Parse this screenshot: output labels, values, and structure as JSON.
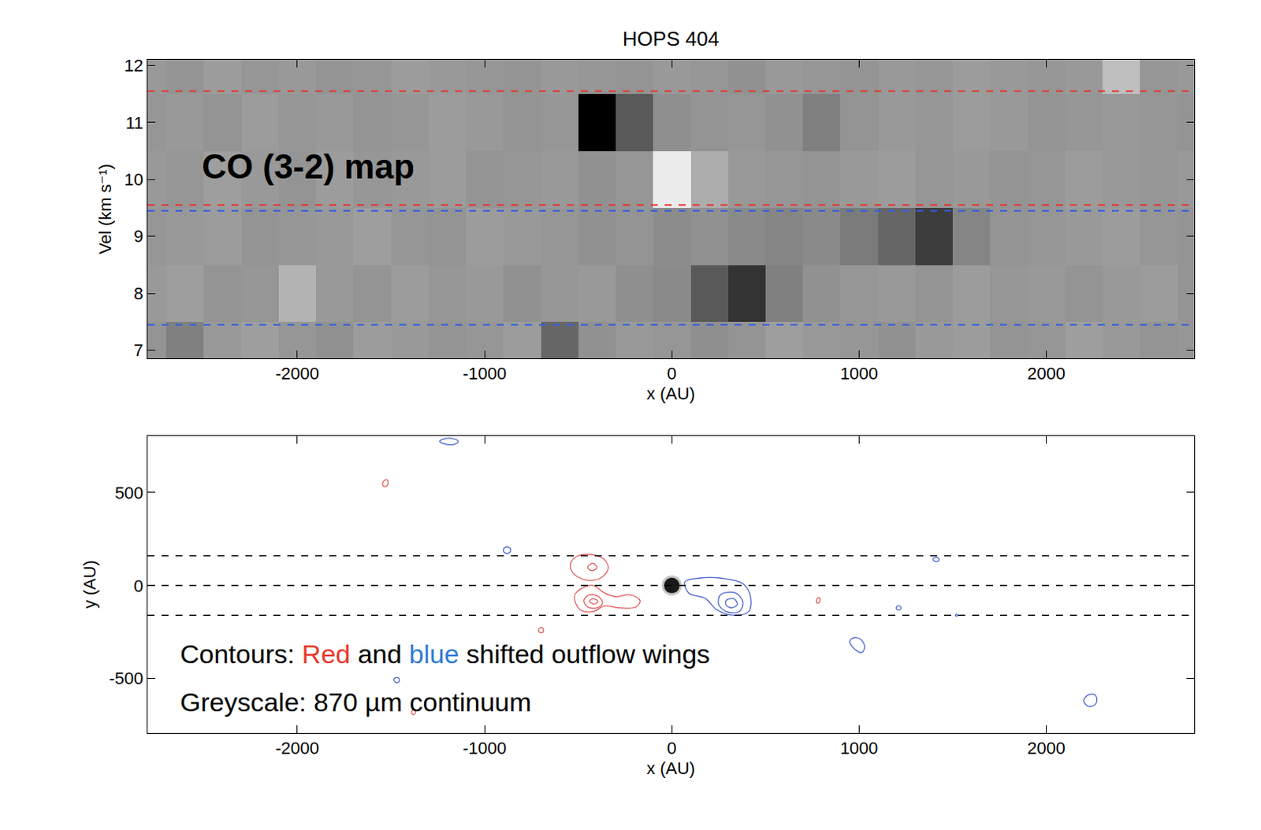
{
  "chart_data": [
    {
      "type": "heatmap",
      "title": "HOPS 404",
      "x_label": "x (AU)",
      "y_label": "Vel (km s⁻¹)",
      "annotation": "CO (3-2) map",
      "x": [
        -2800,
        -2600,
        -2400,
        -2200,
        -2000,
        -1800,
        -1600,
        -1400,
        -1200,
        -1000,
        -800,
        -600,
        -400,
        -200,
        0,
        200,
        400,
        600,
        800,
        1000,
        1200,
        1400,
        1600,
        1800,
        2000,
        2200,
        2400,
        2600,
        2800
      ],
      "y": [
        7,
        8,
        9,
        10,
        11,
        12
      ],
      "z": [
        [
          4.2,
          5.0,
          4.0,
          3.8,
          4.1,
          4.3,
          3.9,
          4.0,
          4.2,
          4.1,
          3.9,
          6.0,
          4.3,
          4.0,
          4.1,
          4.4,
          4.2,
          3.8,
          4.0,
          4.1,
          4.3,
          4.0,
          3.9,
          4.2,
          4.1,
          3.8,
          4.0,
          4.2,
          4.1
        ],
        [
          4.0,
          3.8,
          4.2,
          4.1,
          3.0,
          4.0,
          4.2,
          3.9,
          4.1,
          4.0,
          4.3,
          4.1,
          4.0,
          4.4,
          4.6,
          6.5,
          8.0,
          5.0,
          4.3,
          4.1,
          4.0,
          4.2,
          3.9,
          4.1,
          4.0,
          4.2,
          4.0,
          3.9,
          4.2
        ],
        [
          4.1,
          4.0,
          3.9,
          4.2,
          4.1,
          4.0,
          3.8,
          4.1,
          4.2,
          3.9,
          4.0,
          4.1,
          4.3,
          4.2,
          4.5,
          4.3,
          4.6,
          4.8,
          4.6,
          5.2,
          6.0,
          7.6,
          4.8,
          4.2,
          4.1,
          4.0,
          3.9,
          4.1,
          4.2
        ],
        [
          4.0,
          4.1,
          3.8,
          4.0,
          4.2,
          3.9,
          4.1,
          4.0,
          3.9,
          4.2,
          4.1,
          4.0,
          4.3,
          4.1,
          0.8,
          3.2,
          4.0,
          4.1,
          4.2,
          4.0,
          3.9,
          4.1,
          4.0,
          4.2,
          4.1,
          3.9,
          4.0,
          4.1,
          4.0
        ],
        [
          4.1,
          4.0,
          4.2,
          3.9,
          4.1,
          4.0,
          4.2,
          4.1,
          3.9,
          4.0,
          4.2,
          4.1,
          10.0,
          6.5,
          4.4,
          4.2,
          4.1,
          4.3,
          5.0,
          4.2,
          4.0,
          4.1,
          3.9,
          4.0,
          4.2,
          4.1,
          4.0,
          4.1,
          4.2
        ],
        [
          4.0,
          4.2,
          3.9,
          4.1,
          4.0,
          4.2,
          4.1,
          3.9,
          4.0,
          4.1,
          4.2,
          4.0,
          4.1,
          4.2,
          4.0,
          4.1,
          4.3,
          4.0,
          4.1,
          4.2,
          4.0,
          4.1,
          3.9,
          4.0,
          4.1,
          4.0,
          2.5,
          4.1,
          4.0
        ]
      ],
      "zlim": [
        0,
        10
      ],
      "xlim": [
        -2800,
        2790
      ],
      "ylim": [
        6.86,
        12.1
      ],
      "xticks": [
        -2000,
        -1000,
        0,
        1000,
        2000
      ],
      "yticks": [
        7,
        8,
        9,
        10,
        11,
        12
      ],
      "hlines": [
        {
          "value": 11.55,
          "color": "#e8342a",
          "line_style": "dash"
        },
        {
          "value": 9.55,
          "color": "#e8342a",
          "line_style": "dash"
        },
        {
          "value": 9.45,
          "color": "#2f5fe0",
          "line_style": "dash"
        },
        {
          "value": 7.45,
          "color": "#2f5fe0",
          "line_style": "dash"
        }
      ]
    },
    {
      "type": "contour_map",
      "x_label": "x (AU)",
      "y_label": "y (AU)",
      "legend_text": [
        [
          {
            "text": "Contours: "
          },
          {
            "text": "Red",
            "color": "#e8392b"
          },
          {
            "text": " and "
          },
          {
            "text": "blue",
            "color": "#2f7bd8"
          },
          {
            "text": " shifted outflow wings"
          }
        ],
        [
          {
            "text": "Greyscale: 870 µm continuum"
          }
        ]
      ],
      "continuum": {
        "x": 0,
        "y": 0
      },
      "xlim": [
        -2800,
        2790
      ],
      "ylim": [
        -792,
        804
      ],
      "xticks": [
        -2000,
        -1000,
        0,
        1000,
        2000
      ],
      "yticks": [
        -500,
        0,
        500
      ],
      "hlines": [
        {
          "value": 160,
          "color": "#000000",
          "line_style": "dash"
        },
        {
          "value": 0,
          "color": "#000000",
          "line_style": "dash"
        },
        {
          "value": -160,
          "color": "#000000",
          "line_style": "dash"
        }
      ],
      "contours": [
        {
          "color": "#e05a5a",
          "paths": [
            {
              "x": [
                -540,
                -500,
                -420,
                -360,
                -340,
                -380,
                -460,
                -530,
                -540
              ],
              "y": [
                120,
                160,
                165,
                140,
                90,
                40,
                30,
                70,
                120
              ]
            },
            {
              "x": [
                -450,
                -420,
                -400,
                -430,
                -450
              ],
              "y": [
                100,
                120,
                95,
                80,
                100
              ]
            },
            {
              "x": [
                -520,
                -490,
                -420,
                -360,
                -300,
                -220,
                -170,
                -190,
                -280,
                -360,
                -420,
                -490,
                -520
              ],
              "y": [
                -60,
                -20,
                0,
                -40,
                -60,
                -50,
                -80,
                -115,
                -120,
                -110,
                -140,
                -130,
                -60
              ]
            },
            {
              "x": [
                -470,
                -440,
                -390,
                -370,
                -400,
                -450,
                -470
              ],
              "y": [
                -80,
                -50,
                -60,
                -95,
                -120,
                -115,
                -80
              ]
            },
            {
              "x": [
                -440,
                -420,
                -395,
                -415,
                -440
              ],
              "y": [
                -85,
                -70,
                -85,
                -100,
                -85
              ]
            },
            {
              "x": [
                -1545,
                -1535,
                -1520,
                -1515,
                -1520,
                -1535,
                -1545
              ],
              "y": [
                545,
                565,
                568,
                555,
                538,
                532,
                545
              ]
            },
            {
              "x": [
                -712,
                -705,
                -690,
                -685,
                -690,
                -705,
                -712
              ],
              "y": [
                -240,
                -228,
                -228,
                -240,
                -252,
                -252,
                -240
              ]
            },
            {
              "x": [
                772,
                778,
                788,
                792,
                786,
                776,
                772
              ],
              "y": [
                -80,
                -68,
                -66,
                -78,
                -92,
                -94,
                -80
              ]
            },
            {
              "x": [
                -1390,
                -1383,
                -1372,
                -1368,
                -1374,
                -1386,
                -1390
              ],
              "y": [
                -680,
                -668,
                -668,
                -680,
                -692,
                -692,
                -680
              ]
            }
          ]
        },
        {
          "color": "#4a63d6",
          "paths": [
            {
              "x": [
                70,
                150,
                260,
                380,
                420,
                410,
                330,
                240,
                180,
                90,
                70
              ],
              "y": [
                20,
                40,
                40,
                10,
                -60,
                -140,
                -160,
                -130,
                -70,
                -40,
                20
              ]
            },
            {
              "x": [
                260,
                340,
                380,
                360,
                290,
                250,
                260
              ],
              "y": [
                -50,
                -40,
                -90,
                -140,
                -140,
                -100,
                -50
              ]
            },
            {
              "x": [
                290,
                330,
                350,
                320,
                290,
                290
              ],
              "y": [
                -80,
                -70,
                -100,
                -120,
                -105,
                -80
              ]
            },
            {
              "x": [
                -1240,
                -1210,
                -1170,
                -1140,
                -1160,
                -1200,
                -1240
              ],
              "y": [
                775,
                790,
                790,
                775,
                760,
                758,
                775
              ]
            },
            {
              "x": [
                -900,
                -890,
                -870,
                -860,
                -870,
                -890,
                -900
              ],
              "y": [
                190,
                205,
                205,
                190,
                175,
                175,
                190
              ]
            },
            {
              "x": [
                1395,
                1405,
                1420,
                1428,
                1420,
                1405,
                1395
              ],
              "y": [
                140,
                150,
                150,
                140,
                130,
                130,
                140
              ]
            },
            {
              "x": [
                1198,
                1205,
                1218,
                1224,
                1218,
                1205,
                1198
              ],
              "y": [
                -120,
                -110,
                -110,
                -120,
                -130,
                -130,
                -120
              ]
            },
            {
              "x": [
                950,
                975,
                1010,
                1030,
                1015,
                980,
                950
              ],
              "y": [
                -300,
                -280,
                -290,
                -330,
                -360,
                -345,
                -300
              ]
            },
            {
              "x": [
                -1485,
                -1475,
                -1460,
                -1455,
                -1460,
                -1475,
                -1485
              ],
              "y": [
                -505,
                -495,
                -497,
                -508,
                -520,
                -520,
                -505
              ]
            },
            {
              "x": [
                2200,
                2220,
                2255,
                2270,
                2260,
                2225,
                2200
              ],
              "y": [
                -620,
                -590,
                -585,
                -610,
                -640,
                -650,
                -620
              ]
            },
            {
              "x": [
                1515,
                1520,
                1527,
                1520,
                1515
              ],
              "y": [
                -160,
                -155,
                -160,
                -165,
                -160
              ]
            }
          ]
        }
      ]
    }
  ]
}
